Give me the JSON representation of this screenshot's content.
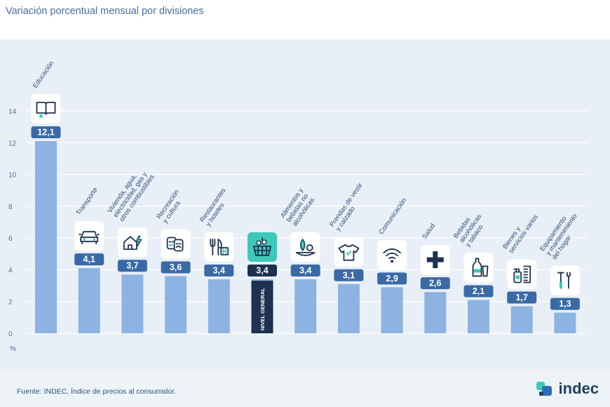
{
  "header": {
    "title_fragment": "",
    "subtitle": "Variación porcentual mensual por divisiones"
  },
  "footer": {
    "source": "Fuente: INDEC, Índice de precios al consumidor.",
    "logo": "indec"
  },
  "colors": {
    "bar": "#8db3e2",
    "bar_highlight": "#1e3250",
    "label_bg": "#3a6aa6",
    "label_bg_highlight": "#1e3250",
    "icon_accent": "#3ec8b8",
    "grid": "#ffffff",
    "axis_text": "#4a6f9c"
  },
  "chart_data": {
    "type": "bar",
    "title": "Variación porcentual mensual por divisiones",
    "ylabel": "%",
    "ylim": [
      0,
      14
    ],
    "yticks": [
      0,
      2,
      4,
      6,
      8,
      10,
      12,
      14
    ],
    "grid": true,
    "categories": [
      {
        "label": [
          "Educación"
        ],
        "value": 12.1,
        "value_label": "12,1",
        "icon": "book-icon"
      },
      {
        "label": [
          "Transporte"
        ],
        "value": 4.1,
        "value_label": "4,1",
        "icon": "car-icon"
      },
      {
        "label": [
          "Vivienda, agua,",
          "electricidad, gas y",
          "otros combustibles"
        ],
        "value": 3.7,
        "value_label": "3,7",
        "icon": "house-energy-icon"
      },
      {
        "label": [
          "Recreación",
          "y cultura"
        ],
        "value": 3.6,
        "value_label": "3,6",
        "icon": "theater-masks-icon"
      },
      {
        "label": [
          "Restaurantes",
          "y hoteles"
        ],
        "value": 3.4,
        "value_label": "3,4",
        "icon": "fork-hotel-icon"
      },
      {
        "label": [
          "NIVEL GENERAL"
        ],
        "value": 3.4,
        "value_label": "3,4",
        "icon": "basket-icon",
        "highlight": true
      },
      {
        "label": [
          "Alimentos y",
          "bebidas no",
          "alcohólicas"
        ],
        "value": 3.4,
        "value_label": "3,4",
        "icon": "food-icon"
      },
      {
        "label": [
          "Prendas de vestir",
          "y calzado"
        ],
        "value": 3.1,
        "value_label": "3,1",
        "icon": "shirt-icon"
      },
      {
        "label": [
          "Comunicación"
        ],
        "value": 2.9,
        "value_label": "2,9",
        "icon": "wifi-icon"
      },
      {
        "label": [
          "Salud"
        ],
        "value": 2.6,
        "value_label": "2,6",
        "icon": "health-cross-icon"
      },
      {
        "label": [
          "Bebidas",
          "alcohólicas",
          "y tabaco"
        ],
        "value": 2.1,
        "value_label": "2,1",
        "icon": "bottle-glass-icon"
      },
      {
        "label": [
          "Bienes y",
          "servicios varios"
        ],
        "value": 1.7,
        "value_label": "1,7",
        "icon": "spray-comb-icon"
      },
      {
        "label": [
          "Equipamiento",
          "y mantenimiento",
          "del hogar"
        ],
        "value": 1.3,
        "value_label": "1,3",
        "icon": "tools-icon"
      }
    ]
  }
}
